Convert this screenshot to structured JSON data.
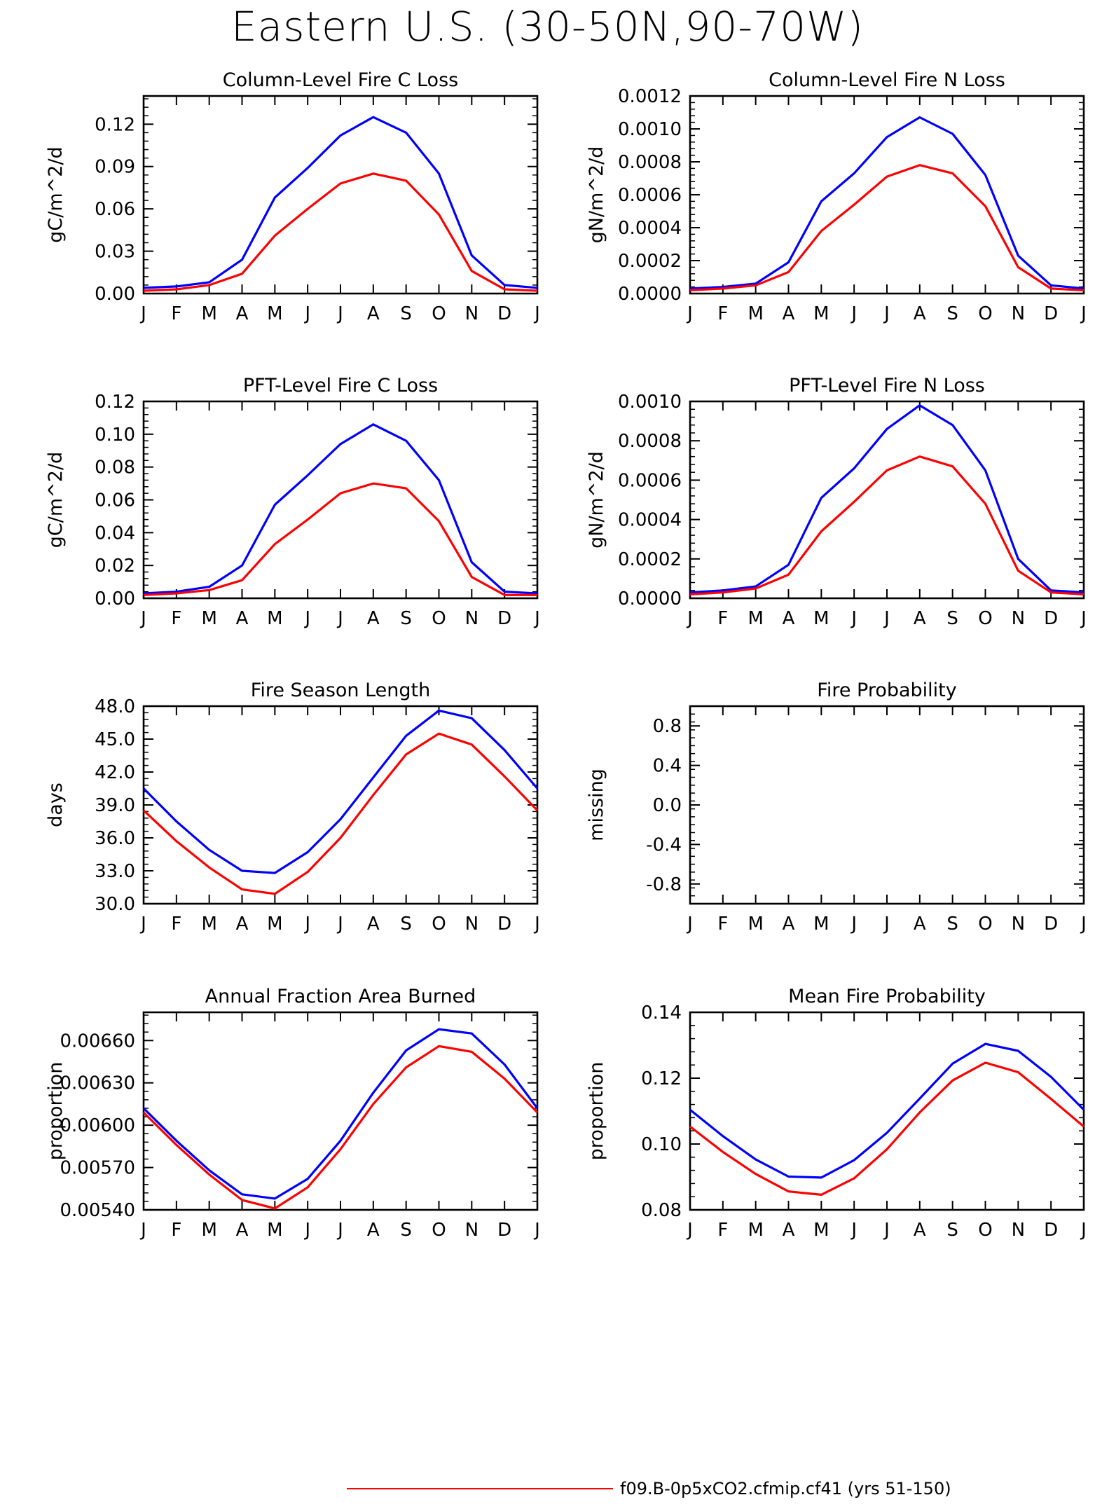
{
  "title": "Eastern U.S. (30-50N,90-70W)",
  "legend": {
    "label": "f09.B-0p5xCO2.cfmip.cf41 (yrs 51-150)",
    "color": "#ff0000"
  },
  "colors": {
    "series_a": "#0000ff",
    "series_b": "#ff0000",
    "axis": "#000000"
  },
  "chart_data": [
    {
      "type": "line",
      "title": "Column-Level Fire C Loss",
      "ylabel": "gC/m^2/d",
      "x": [
        "J",
        "F",
        "M",
        "A",
        "M",
        "J",
        "J",
        "A",
        "S",
        "O",
        "N",
        "D",
        "J"
      ],
      "ylim": [
        0,
        0.14
      ],
      "yticks": [
        0,
        0.03,
        0.06,
        0.09,
        0.12
      ],
      "ytick_labels": [
        "0.00",
        "0.03",
        "0.06",
        "0.09",
        "0.12"
      ],
      "grid": false,
      "series": [
        {
          "color": "#0000ff",
          "values": [
            0.004,
            0.005,
            0.008,
            0.024,
            0.068,
            0.089,
            0.112,
            0.125,
            0.114,
            0.085,
            0.027,
            0.006,
            0.004
          ]
        },
        {
          "color": "#ff0000",
          "values": [
            0.002,
            0.003,
            0.006,
            0.014,
            0.041,
            0.06,
            0.078,
            0.085,
            0.08,
            0.056,
            0.016,
            0.003,
            0.002
          ]
        }
      ]
    },
    {
      "type": "line",
      "title": "Column-Level Fire N Loss",
      "ylabel": "gN/m^2/d",
      "x": [
        "J",
        "F",
        "M",
        "A",
        "M",
        "J",
        "J",
        "A",
        "S",
        "O",
        "N",
        "D",
        "J"
      ],
      "ylim": [
        0,
        0.0012
      ],
      "yticks": [
        0,
        0.0002,
        0.0004,
        0.0006,
        0.0008,
        0.001,
        0.0012
      ],
      "ytick_labels": [
        "0.0000",
        "0.0002",
        "0.0004",
        "0.0006",
        "0.0008",
        "0.0010",
        "0.0012"
      ],
      "grid": false,
      "series": [
        {
          "color": "#0000ff",
          "values": [
            3e-05,
            4e-05,
            6e-05,
            0.00019,
            0.00056,
            0.00073,
            0.00095,
            0.00107,
            0.00097,
            0.00072,
            0.00023,
            5e-05,
            3e-05
          ]
        },
        {
          "color": "#ff0000",
          "values": [
            2e-05,
            3e-05,
            5e-05,
            0.00013,
            0.00038,
            0.00054,
            0.00071,
            0.00078,
            0.00073,
            0.00053,
            0.00016,
            3e-05,
            2e-05
          ]
        }
      ]
    },
    {
      "type": "line",
      "title": "PFT-Level Fire C Loss",
      "ylabel": "gC/m^2/d",
      "x": [
        "J",
        "F",
        "M",
        "A",
        "M",
        "J",
        "J",
        "A",
        "S",
        "O",
        "N",
        "D",
        "J"
      ],
      "ylim": [
        0,
        0.12
      ],
      "yticks": [
        0,
        0.02,
        0.04,
        0.06,
        0.08,
        0.1,
        0.12
      ],
      "ytick_labels": [
        "0.00",
        "0.02",
        "0.04",
        "0.06",
        "0.08",
        "0.10",
        "0.12"
      ],
      "grid": false,
      "series": [
        {
          "color": "#0000ff",
          "values": [
            0.003,
            0.004,
            0.007,
            0.02,
            0.057,
            0.075,
            0.094,
            0.106,
            0.096,
            0.072,
            0.022,
            0.004,
            0.003
          ]
        },
        {
          "color": "#ff0000",
          "values": [
            0.002,
            0.003,
            0.005,
            0.011,
            0.033,
            0.048,
            0.064,
            0.07,
            0.067,
            0.047,
            0.013,
            0.002,
            0.002
          ]
        }
      ]
    },
    {
      "type": "line",
      "title": "PFT-Level Fire N Loss",
      "ylabel": "gN/m^2/d",
      "x": [
        "J",
        "F",
        "M",
        "A",
        "M",
        "J",
        "J",
        "A",
        "S",
        "O",
        "N",
        "D",
        "J"
      ],
      "ylim": [
        0,
        0.001
      ],
      "yticks": [
        0,
        0.0002,
        0.0004,
        0.0006,
        0.0008,
        0.001
      ],
      "ytick_labels": [
        "0.0000",
        "0.0002",
        "0.0004",
        "0.0006",
        "0.0008",
        "0.0010"
      ],
      "grid": false,
      "series": [
        {
          "color": "#0000ff",
          "values": [
            3e-05,
            4e-05,
            6e-05,
            0.00017,
            0.00051,
            0.00066,
            0.00086,
            0.00098,
            0.00088,
            0.00065,
            0.0002,
            4e-05,
            3e-05
          ]
        },
        {
          "color": "#ff0000",
          "values": [
            2e-05,
            3e-05,
            5e-05,
            0.00012,
            0.00034,
            0.00049,
            0.00065,
            0.00072,
            0.00067,
            0.00048,
            0.00014,
            3e-05,
            2e-05
          ]
        }
      ]
    },
    {
      "type": "line",
      "title": "Fire Season Length",
      "ylabel": "days",
      "x": [
        "J",
        "F",
        "M",
        "A",
        "M",
        "J",
        "J",
        "A",
        "S",
        "O",
        "N",
        "D",
        "J"
      ],
      "ylim": [
        30,
        48
      ],
      "yticks": [
        30,
        33,
        36,
        39,
        42,
        45,
        48
      ],
      "ytick_labels": [
        "30.0",
        "33.0",
        "36.0",
        "39.0",
        "42.0",
        "45.0",
        "48.0"
      ],
      "grid": false,
      "series": [
        {
          "color": "#0000ff",
          "values": [
            40.5,
            37.5,
            34.9,
            33.0,
            32.8,
            34.7,
            37.7,
            41.5,
            45.3,
            47.6,
            46.9,
            44.0,
            40.5
          ]
        },
        {
          "color": "#ff0000",
          "values": [
            38.5,
            35.7,
            33.3,
            31.3,
            30.9,
            32.9,
            36.0,
            39.9,
            43.6,
            45.5,
            44.5,
            41.6,
            38.5
          ]
        }
      ]
    },
    {
      "type": "line",
      "title": "Fire Probability",
      "ylabel": "missing",
      "x": [
        "J",
        "F",
        "M",
        "A",
        "M",
        "J",
        "J",
        "A",
        "S",
        "O",
        "N",
        "D",
        "J"
      ],
      "ylim": [
        -1,
        1
      ],
      "yticks": [
        -0.8,
        -0.4,
        0,
        0.4,
        0.8
      ],
      "ytick_labels": [
        "-0.8",
        "-0.4",
        "0.0",
        "0.4",
        "0.8"
      ],
      "grid": false,
      "series": []
    },
    {
      "type": "line",
      "title": "Annual Fraction Area Burned",
      "ylabel": "proportion",
      "x": [
        "J",
        "F",
        "M",
        "A",
        "M",
        "J",
        "J",
        "A",
        "S",
        "O",
        "N",
        "D",
        "J"
      ],
      "ylim": [
        0.0054,
        0.0068
      ],
      "yticks": [
        0.0054,
        0.0057,
        0.006,
        0.0063,
        0.0066
      ],
      "ytick_labels": [
        "0.00540",
        "0.00570",
        "0.00600",
        "0.00630",
        "0.00660"
      ],
      "grid": false,
      "series": [
        {
          "color": "#0000ff",
          "values": [
            0.00612,
            0.00589,
            0.00568,
            0.00551,
            0.00548,
            0.00562,
            0.00589,
            0.00623,
            0.00653,
            0.00668,
            0.00665,
            0.00643,
            0.00612
          ]
        },
        {
          "color": "#ff0000",
          "values": [
            0.00609,
            0.00586,
            0.00565,
            0.00547,
            0.00541,
            0.00556,
            0.00583,
            0.00615,
            0.00641,
            0.00656,
            0.00652,
            0.00633,
            0.00609
          ]
        }
      ]
    },
    {
      "type": "line",
      "title": "Mean Fire Probability",
      "ylabel": "proportion",
      "x": [
        "J",
        "F",
        "M",
        "A",
        "M",
        "J",
        "J",
        "A",
        "S",
        "O",
        "N",
        "D",
        "J"
      ],
      "ylim": [
        0.08,
        0.14
      ],
      "yticks": [
        0.08,
        0.1,
        0.12,
        0.14
      ],
      "ytick_labels": [
        "0.08",
        "0.10",
        "0.12",
        "0.14"
      ],
      "grid": false,
      "series": [
        {
          "color": "#0000ff",
          "values": [
            0.1104,
            0.1024,
            0.0953,
            0.0901,
            0.0898,
            0.0951,
            0.1034,
            0.1138,
            0.1244,
            0.1304,
            0.1283,
            0.1204,
            0.1104
          ]
        },
        {
          "color": "#ff0000",
          "values": [
            0.1053,
            0.0976,
            0.0909,
            0.0856,
            0.0846,
            0.0896,
            0.0984,
            0.1096,
            0.1193,
            0.1247,
            0.1218,
            0.1137,
            0.1053
          ]
        }
      ]
    }
  ]
}
